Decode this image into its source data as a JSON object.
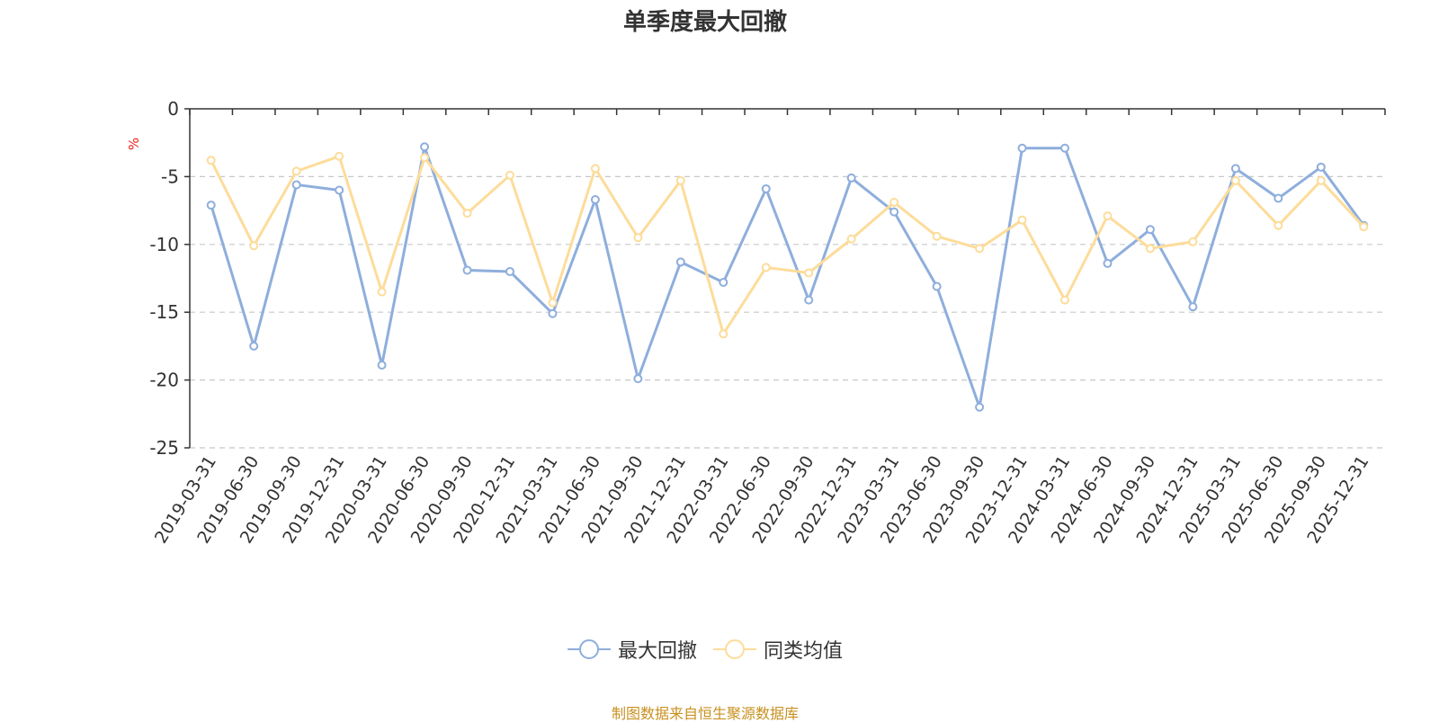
{
  "chart_data": {
    "type": "line",
    "title": "单季度最大回撤",
    "ylabel": "%",
    "ylim": [
      -25,
      0
    ],
    "yticks": [
      0,
      -5,
      -10,
      -15,
      -20,
      -25
    ],
    "grid": "horizontal dashed",
    "legend_position": "bottom-center",
    "categories": [
      "2019-03-31",
      "2019-06-30",
      "2019-09-30",
      "2019-12-31",
      "2020-03-31",
      "2020-06-30",
      "2020-09-30",
      "2020-12-31",
      "2021-03-31",
      "2021-06-30",
      "2021-09-30",
      "2021-12-31",
      "2022-03-31",
      "2022-06-30",
      "2022-09-30",
      "2022-12-31",
      "2023-03-31",
      "2023-06-30",
      "2023-09-30",
      "2023-12-31",
      "2024-03-31",
      "2024-06-30",
      "2024-09-30",
      "2024-12-31",
      "2025-03-31",
      "2025-06-30",
      "2025-09-30",
      "2025-12-31"
    ],
    "series": [
      {
        "name": "最大回撤",
        "color": "#8eaedc",
        "values": [
          -7.1,
          -17.5,
          -5.6,
          -6.0,
          -18.9,
          -2.8,
          -11.9,
          -12.0,
          -15.1,
          -6.7,
          -19.9,
          -11.3,
          -12.8,
          -5.9,
          -14.1,
          -5.1,
          -7.6,
          -13.1,
          -22.0,
          -2.9,
          -2.9,
          -11.4,
          -8.9,
          -14.6,
          -4.4,
          -6.6,
          -4.3,
          -8.6
        ]
      },
      {
        "name": "同类均值",
        "color": "#fddc9a",
        "values": [
          -3.8,
          -10.1,
          -4.6,
          -3.5,
          -13.5,
          -3.6,
          -7.7,
          -4.9,
          -14.3,
          -4.4,
          -9.5,
          -5.3,
          -16.6,
          -11.7,
          -12.1,
          -9.6,
          -6.9,
          -9.4,
          -10.3,
          -8.2,
          -14.1,
          -7.9,
          -10.3,
          -9.8,
          -5.3,
          -8.6,
          -5.3,
          -8.7
        ]
      }
    ],
    "source": "制图数据来自恒生聚源数据库"
  }
}
